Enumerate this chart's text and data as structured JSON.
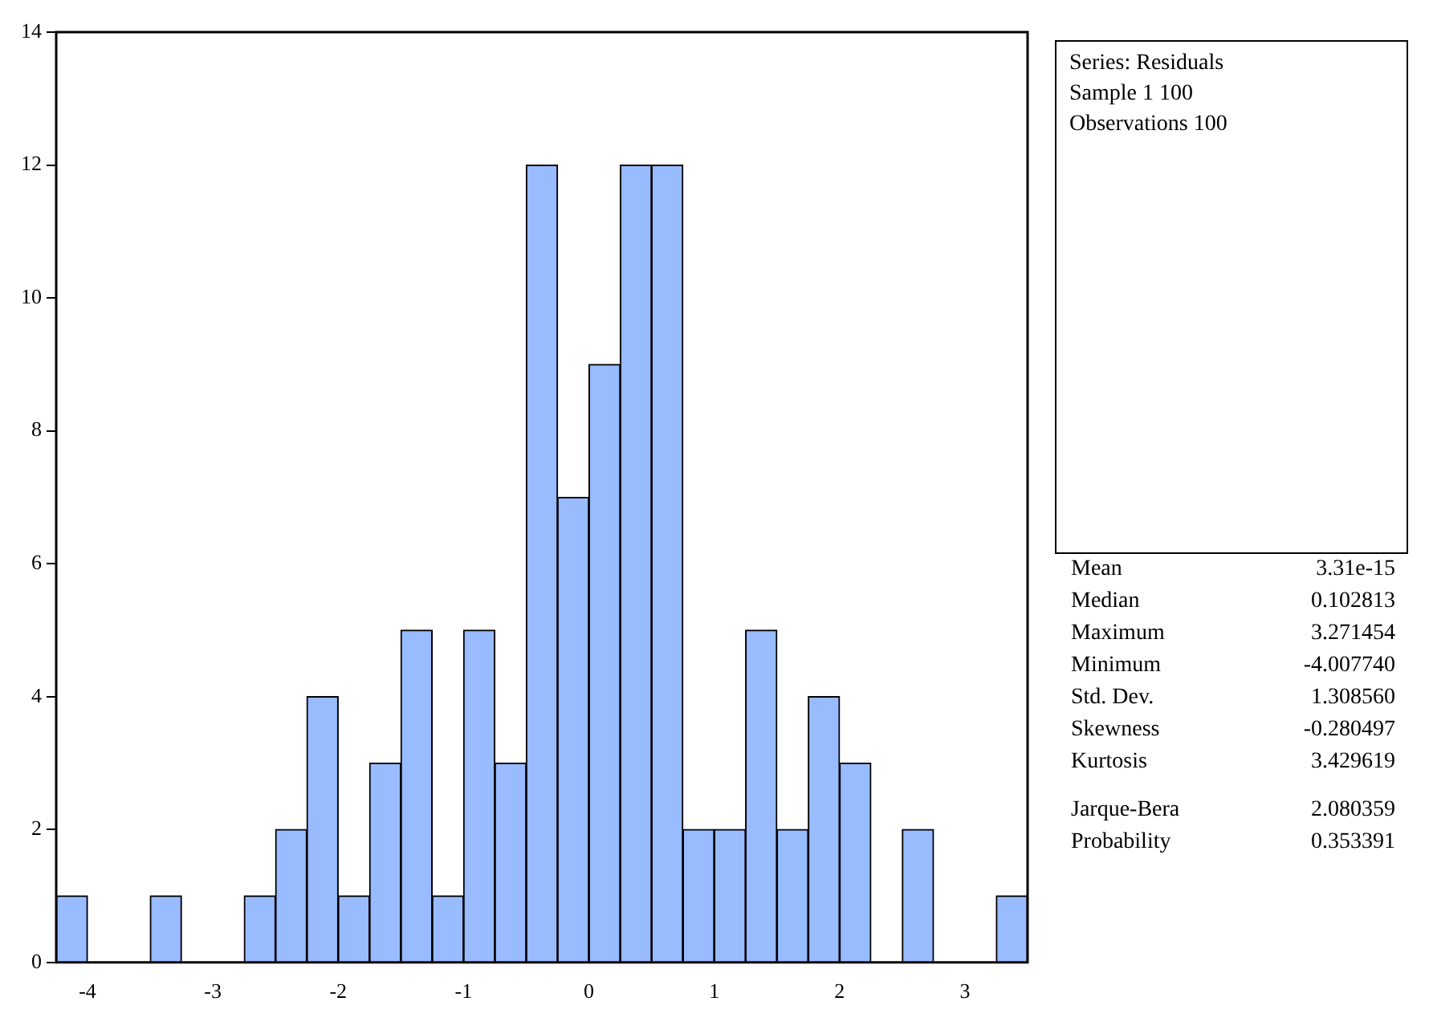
{
  "chart_data": {
    "type": "histogram",
    "bins": [
      -4.25,
      -4,
      -3.75,
      -3.5,
      -3.25,
      -3,
      -2.75,
      -2.5,
      -2.25,
      -2,
      -1.75,
      -1.5,
      -1.25,
      -1,
      -0.75,
      -0.5,
      -0.25,
      0,
      0.25,
      0.5,
      0.75,
      1,
      1.25,
      1.5,
      1.75,
      2,
      2.25,
      2.5,
      2.75,
      3,
      3.25,
      3.5
    ],
    "values": [
      1,
      0,
      0,
      1,
      0,
      0,
      1,
      2,
      4,
      1,
      3,
      5,
      1,
      5,
      3,
      12,
      7,
      9,
      12,
      12,
      2,
      2,
      5,
      2,
      4,
      3,
      0,
      2,
      0,
      0,
      1
    ],
    "color": "#99bbff",
    "xlim": [
      -4.25,
      3.5
    ],
    "xticks": [
      -4,
      -3,
      -2,
      -1,
      0,
      1,
      2,
      3
    ],
    "ylim": [
      0,
      14
    ],
    "yticks": [
      0,
      2,
      4,
      6,
      8,
      10,
      12,
      14
    ],
    "grid": false,
    "legend": false,
    "annotations": [
      "Series: Residuals",
      "Sample 1 100",
      "Observations 100",
      "Mean 3.31e-15",
      "Median 0.102813",
      "Maximum 3.271454",
      "Minimum -4.007740",
      "Std. Dev. 1.308560",
      "Skewness -0.280497",
      "Kurtosis 3.429619",
      "Jarque-Bera 2.080359",
      "Probability 0.353391"
    ]
  }
}
